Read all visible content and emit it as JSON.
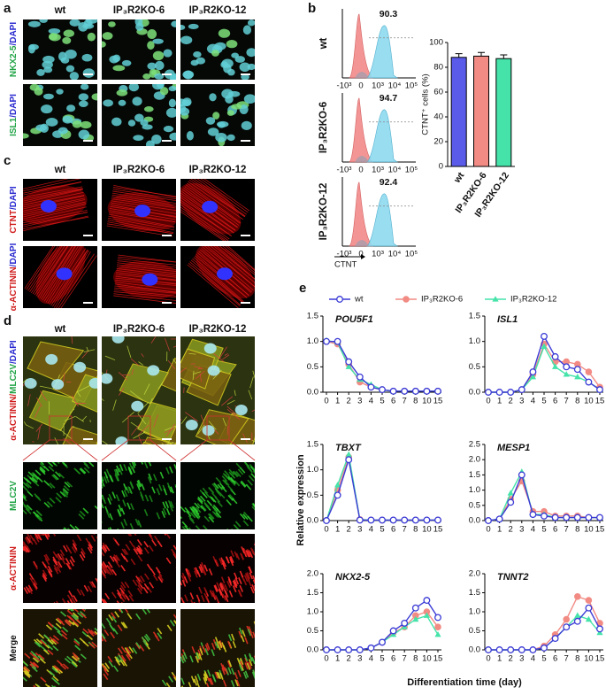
{
  "panels": {
    "a": {
      "label": "a",
      "columns": [
        "wt",
        "IP₃R2KO-6",
        "IP₃R2KO-12"
      ],
      "rows": [
        [
          {
            "text": "NKX2-5",
            "color": "#22a447"
          },
          {
            "text": "/DAPI",
            "color": "#2a2ad0"
          }
        ],
        [
          {
            "text": "ISL1",
            "color": "#22a447"
          },
          {
            "text": "/DAPI",
            "color": "#2a2ad0"
          }
        ]
      ]
    },
    "b": {
      "label": "b",
      "rows": [
        "wt",
        "IP₃R2KO-6",
        "IP₃R2KO-12"
      ],
      "percentages": [
        "90.3",
        "94.7",
        "92.4"
      ],
      "xticks": [
        "-10³",
        "0",
        "10³",
        "10⁴",
        "10⁵"
      ],
      "xlabel": "CTNT"
    },
    "c": {
      "label": "c",
      "columns": [
        "wt",
        "IP₃R2KO-6",
        "IP₃R2KO-12"
      ],
      "rows": [
        [
          {
            "text": "CTNT",
            "color": "#d01c1c"
          },
          {
            "text": "/DAPI",
            "color": "#2a2ad0"
          }
        ],
        [
          {
            "text": "α-ACTININ",
            "color": "#d01c1c"
          },
          {
            "text": "/DAPI",
            "color": "#2a2ad0"
          }
        ]
      ]
    },
    "d": {
      "label": "d",
      "columns": [
        "wt",
        "IP₃R2KO-6",
        "IP₃R2KO-12"
      ],
      "rows": [
        [
          {
            "text": "α-ACTININ/",
            "color": "#d01c1c"
          },
          {
            "text": "MLC2V",
            "color": "#22a447"
          },
          {
            "text": "/DAPI",
            "color": "#2a2ad0"
          }
        ],
        [
          {
            "text": "MLC2V",
            "color": "#22a447"
          }
        ],
        [
          {
            "text": "α-ACTININ",
            "color": "#d01c1c"
          }
        ],
        [
          {
            "text": "Merge",
            "color": "#111111"
          }
        ]
      ]
    },
    "e": {
      "label": "e",
      "xlabel": "Differentiation time (day)",
      "ylabel": "Relative expression"
    }
  },
  "chart_data": [
    {
      "type": "bar",
      "ylabel": "CTNT⁺ cells (%)",
      "categories": [
        "wt",
        "IP₃R2KO-6",
        "IP₃R2KO-12"
      ],
      "values": [
        88,
        89,
        87
      ],
      "errors": [
        3,
        3,
        3
      ],
      "colors": [
        "#5b5bea",
        "#f28b84",
        "#45e3aa"
      ],
      "ylim": [
        0,
        100
      ],
      "yticks": [
        0,
        20,
        40,
        60,
        80,
        100
      ]
    },
    {
      "type": "line",
      "title": "POU5F1",
      "categories": [
        "0",
        "1",
        "2",
        "3",
        "4",
        "5",
        "6",
        "7",
        "8",
        "10",
        "15"
      ],
      "ylim": [
        0,
        1.5
      ],
      "yticks": [
        {
          "value": 0,
          "label": "0.0"
        },
        0.5,
        {
          "value": 1,
          "label": "1.0"
        },
        1.5
      ],
      "series": [
        {
          "name": "wt",
          "color": "#3b3bd6",
          "values": [
            1.0,
            1.0,
            0.6,
            0.3,
            0.1,
            0.05,
            0.02,
            0.02,
            0.02,
            0.02,
            0.02
          ]
        },
        {
          "name": "IP₃R2KO-6",
          "color": "#f28b84",
          "values": [
            1.0,
            0.95,
            0.55,
            0.2,
            0.1,
            0.05,
            0.02,
            0.02,
            0.02,
            0.02,
            0.02
          ]
        },
        {
          "name": "IP₃R2KO-12",
          "color": "#45e3aa",
          "values": [
            1.02,
            0.98,
            0.5,
            0.25,
            0.15,
            0.05,
            0.02,
            0.02,
            0.02,
            0.02,
            0.02
          ]
        }
      ]
    },
    {
      "type": "line",
      "title": "ISL1",
      "categories": [
        "0",
        "1",
        "2",
        "3",
        "4",
        "5",
        "6",
        "7",
        "8",
        "10",
        "15"
      ],
      "ylim": [
        0,
        1.5
      ],
      "yticks": [
        {
          "value": 0,
          "label": "0.0"
        },
        0.5,
        {
          "value": 1,
          "label": "1.0"
        },
        1.5
      ],
      "series": [
        {
          "name": "wt",
          "color": "#3b3bd6",
          "values": [
            0,
            0,
            0,
            0.05,
            0.4,
            1.1,
            0.7,
            0.5,
            0.45,
            0.2,
            0.05
          ]
        },
        {
          "name": "IP₃R2KO-6",
          "color": "#f28b84",
          "values": [
            0,
            0,
            0,
            0.05,
            0.35,
            0.95,
            0.6,
            0.6,
            0.55,
            0.4,
            0.1
          ]
        },
        {
          "name": "IP₃R2KO-12",
          "color": "#45e3aa",
          "values": [
            0,
            0,
            0,
            0.05,
            0.3,
            0.9,
            0.5,
            0.35,
            0.3,
            0.2,
            0.05
          ]
        }
      ]
    },
    {
      "type": "line",
      "title": "TBXT",
      "categories": [
        "0",
        "1",
        "2",
        "3",
        "4",
        "5",
        "6",
        "7",
        "8",
        "10",
        "15"
      ],
      "ylim": [
        0,
        1.5
      ],
      "yticks": [
        {
          "value": 0,
          "label": "0.0"
        },
        0.5,
        {
          "value": 1,
          "label": "1.0"
        },
        1.5
      ],
      "series": [
        {
          "name": "wt",
          "color": "#3b3bd6",
          "values": [
            0,
            0.5,
            1.2,
            0.01,
            0.01,
            0.01,
            0.01,
            0.01,
            0.01,
            0.01,
            0.01
          ]
        },
        {
          "name": "IP₃R2KO-6",
          "color": "#f28b84",
          "values": [
            0,
            0.6,
            1.25,
            0.02,
            0.01,
            0.01,
            0.01,
            0.01,
            0.01,
            0.01,
            0.01
          ]
        },
        {
          "name": "IP₃R2KO-12",
          "color": "#45e3aa",
          "values": [
            0,
            0.7,
            1.3,
            0.02,
            0.01,
            0.01,
            0.01,
            0.01,
            0.01,
            0.01,
            0.01
          ]
        }
      ]
    },
    {
      "type": "line",
      "title": "MESP1",
      "categories": [
        "0",
        "1",
        "2",
        "3",
        "4",
        "5",
        "6",
        "7",
        "8",
        "10",
        "15"
      ],
      "ylim": [
        0,
        2.5
      ],
      "yticks": [
        {
          "value": 0,
          "label": "0.0"
        },
        0.5,
        {
          "value": 1,
          "label": "1.0"
        },
        1.5,
        {
          "value": 2,
          "label": "2.0"
        },
        2.5
      ],
      "series": [
        {
          "name": "wt",
          "color": "#3b3bd6",
          "values": [
            0,
            0.05,
            0.6,
            1.5,
            0.2,
            0.15,
            0.1,
            0.1,
            0.1,
            0.1,
            0.1
          ]
        },
        {
          "name": "IP₃R2KO-6",
          "color": "#f28b84",
          "values": [
            0,
            0.05,
            0.7,
            1.3,
            0.3,
            0.3,
            0.15,
            0.15,
            0.15,
            0.1,
            0.1
          ]
        },
        {
          "name": "IP₃R2KO-12",
          "color": "#45e3aa",
          "values": [
            0,
            0.05,
            0.9,
            1.6,
            0.2,
            0.2,
            0.1,
            0.1,
            0.1,
            0.1,
            0.1
          ]
        }
      ]
    },
    {
      "type": "line",
      "title": "NKX2-5",
      "categories": [
        "0",
        "1",
        "2",
        "3",
        "4",
        "5",
        "6",
        "7",
        "8",
        "10",
        "15"
      ],
      "ylim": [
        0,
        2
      ],
      "yticks": [
        {
          "value": 0,
          "label": "0.0"
        },
        0.5,
        {
          "value": 1,
          "label": "1.0"
        },
        1.5,
        {
          "value": 2,
          "label": "2.0"
        }
      ],
      "series": [
        {
          "name": "wt",
          "color": "#3b3bd6",
          "values": [
            0,
            0,
            0,
            0,
            0.05,
            0.2,
            0.5,
            0.7,
            1.1,
            1.3,
            0.85
          ]
        },
        {
          "name": "IP₃R2KO-6",
          "color": "#f28b84",
          "values": [
            0,
            0,
            0,
            0,
            0.05,
            0.2,
            0.45,
            0.6,
            0.9,
            1.0,
            0.6
          ]
        },
        {
          "name": "IP₃R2KO-12",
          "color": "#45e3aa",
          "values": [
            0,
            0,
            0,
            0,
            0.05,
            0.2,
            0.4,
            0.6,
            0.8,
            0.9,
            0.4
          ]
        }
      ]
    },
    {
      "type": "line",
      "title": "TNNT2",
      "categories": [
        "0",
        "1",
        "2",
        "3",
        "4",
        "5",
        "6",
        "7",
        "8",
        "10",
        "15"
      ],
      "ylim": [
        0,
        2
      ],
      "yticks": [
        {
          "value": 0,
          "label": "0.0"
        },
        0.5,
        {
          "value": 1,
          "label": "1.0"
        },
        1.5,
        {
          "value": 2,
          "label": "2.0"
        }
      ],
      "series": [
        {
          "name": "wt",
          "color": "#3b3bd6",
          "values": [
            0,
            0,
            0,
            0,
            0,
            0.05,
            0.3,
            0.6,
            0.75,
            1.1,
            0.55
          ]
        },
        {
          "name": "IP₃R2KO-6",
          "color": "#f28b84",
          "values": [
            0,
            0,
            0,
            0,
            0,
            0.1,
            0.4,
            0.8,
            1.4,
            1.3,
            0.7
          ]
        },
        {
          "name": "IP₃R2KO-12",
          "color": "#45e3aa",
          "values": [
            0,
            0,
            0,
            0,
            0,
            0.05,
            0.3,
            0.6,
            0.9,
            0.8,
            0.45
          ]
        }
      ]
    }
  ]
}
